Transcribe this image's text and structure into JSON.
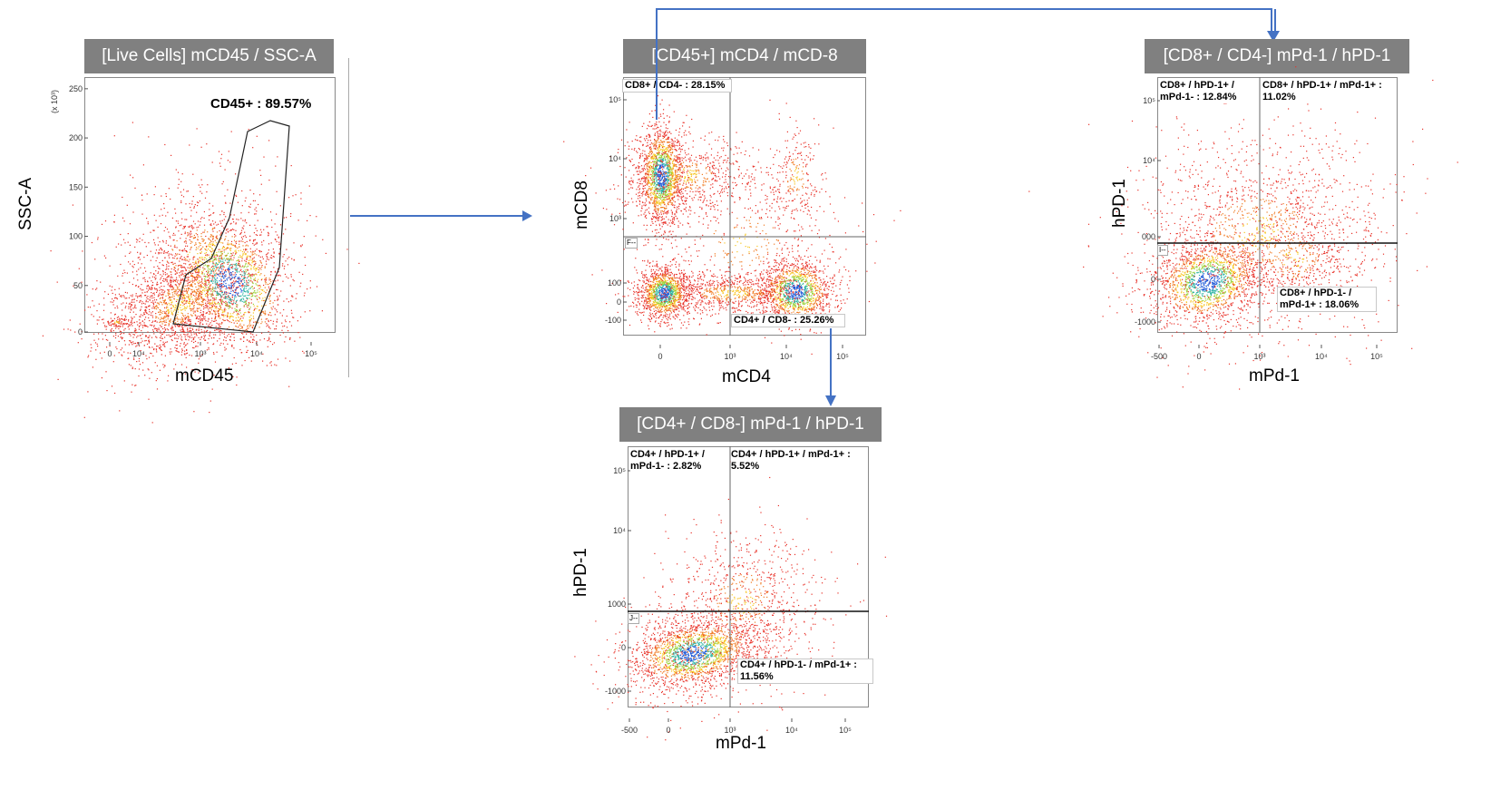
{
  "panels": {
    "live": {
      "header": "[Live Cells] mCD45  / SSC-A",
      "xlabel": "mCD45",
      "ylabel": "SSC-A",
      "y_scale_note": "(x 10³)",
      "gate_label": "CD45+ : 89.57%"
    },
    "cd45": {
      "header": "[CD45+] mCD4  / mCD-8",
      "xlabel": "mCD4",
      "ylabel": "mCD8",
      "gate_tag": "F--",
      "q_ul": "CD8+ / CD4- : 28.15%",
      "q_lr": "CD4+ / CD8- : 25.26%"
    },
    "cd8": {
      "header": "[CD8+ / CD4-] mPd-1  / hPD-1",
      "xlabel": "mPd-1",
      "ylabel": "hPD-1",
      "gate_tag": "I--",
      "q_ul": "CD8+ / hPD-1+ /\nmPd-1- : 12.84%",
      "q_ur": "CD8+ / hPD-1+ / mPd-1+ :\n11.02%",
      "q_lr": "CD8+ / hPD-1- /\nmPd-1+ : 18.06%"
    },
    "cd4": {
      "header": "[CD4+ / CD8-] mPd-1  / hPD-1",
      "xlabel": "mPd-1",
      "ylabel": "hPD-1",
      "gate_tag": "J--",
      "q_ul": "CD4+ / hPD-1+ /\nmPd-1- : 2.82%",
      "q_ur": "CD4+ / hPD-1+ / mPd-1+ :\n5.52%",
      "q_lr": "CD4+ / hPD-1- / mPd-1+ :\n11.56%"
    }
  },
  "chart_data": [
    {
      "type": "scatter",
      "title": "[Live Cells] mCD45  / SSC-A",
      "xlabel": "mCD45",
      "ylabel": "SSC-A",
      "x_ticks": [
        "0",
        "10⁴",
        "10³",
        "10⁴",
        "10⁵"
      ],
      "y_ticks": [
        "0",
        "50",
        "100",
        "150",
        "200",
        "250"
      ],
      "y_scale_note": "(x 10³)",
      "ylim": [
        0,
        260
      ],
      "gates": [
        {
          "name": "CD45+",
          "percent": 89.57
        }
      ],
      "colors": {
        "low": "#e8322a",
        "mid": "#f7c520",
        "high": "#1e5ad8",
        "peak": "#2b8fe0"
      }
    },
    {
      "type": "scatter",
      "title": "[CD45+] mCD4  / mCD-8",
      "xlabel": "mCD4",
      "ylabel": "mCD8",
      "x_ticks": [
        "0",
        "10³",
        "10⁴",
        "10⁵"
      ],
      "y_ticks": [
        "10⁵",
        "10⁴",
        "10³",
        "100",
        "0",
        "-100"
      ],
      "quadrants": [
        {
          "name": "CD8+ / CD4-",
          "percent": 28.15
        },
        {
          "name": "CD4+ / CD8-",
          "percent": 25.26
        }
      ]
    },
    {
      "type": "scatter",
      "title": "[CD8+ / CD4-] mPd-1  / hPD-1",
      "xlabel": "mPd-1",
      "ylabel": "hPD-1",
      "x_ticks": [
        "-500",
        "0",
        "10³",
        "10⁴",
        "10⁵"
      ],
      "y_ticks": [
        "10⁵",
        "10⁴",
        "000",
        "0",
        "-1000"
      ],
      "quadrants": [
        {
          "name": "CD8+ / hPD-1+ / mPd-1-",
          "percent": 12.84
        },
        {
          "name": "CD8+ / hPD-1+ / mPd-1+",
          "percent": 11.02
        },
        {
          "name": "CD8+ / hPD-1- / mPd-1+",
          "percent": 18.06
        }
      ]
    },
    {
      "type": "scatter",
      "title": "[CD4+ / CD8-] mPd-1  / hPD-1",
      "xlabel": "mPd-1",
      "ylabel": "hPD-1",
      "x_ticks": [
        "-500",
        "0",
        "10³",
        "10⁴",
        "10⁵"
      ],
      "y_ticks": [
        "10⁵",
        "10⁴",
        "1000",
        "0",
        "-1000"
      ],
      "quadrants": [
        {
          "name": "CD4+ / hPD-1+ / mPd-1-",
          "percent": 2.82
        },
        {
          "name": "CD4+ / hPD-1+ / mPd-1+",
          "percent": 5.52
        },
        {
          "name": "CD4+ / hPD-1- / mPd-1+",
          "percent": 11.56
        }
      ]
    }
  ]
}
